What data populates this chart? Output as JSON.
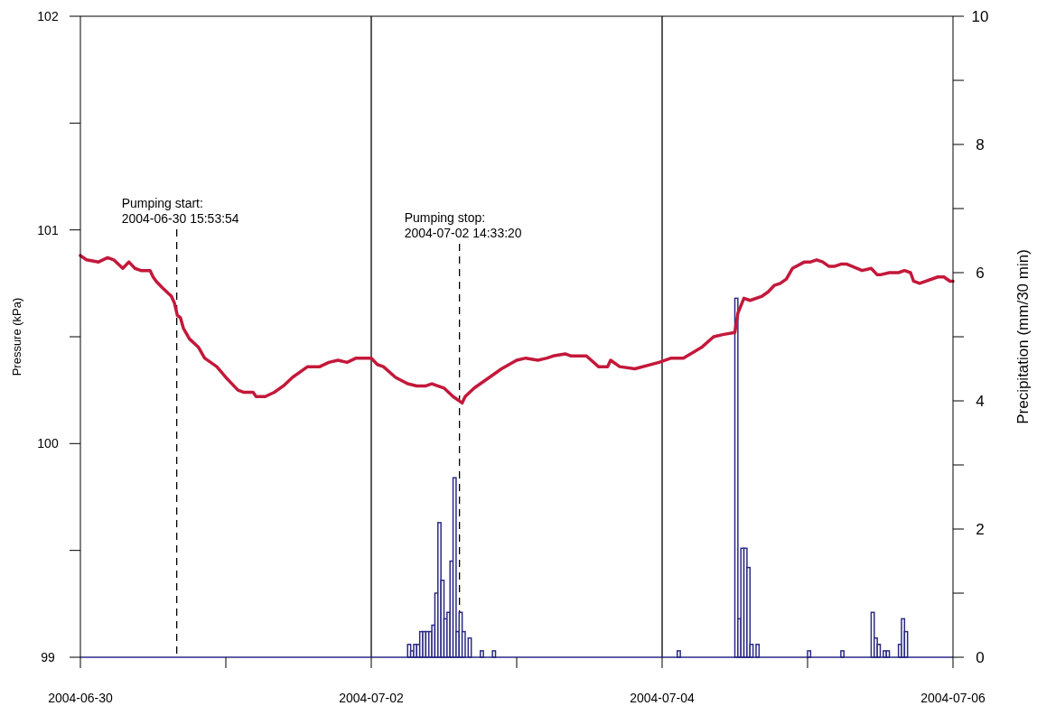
{
  "chart_data": {
    "type": "line",
    "ylabel": "Pressure (kPa)",
    "y2label": "Precipitation (mm/30 min)",
    "xlim": [
      "2004-06-30",
      "2004-07-06"
    ],
    "xticks": [
      {
        "value": "2004-06-30",
        "label": "2004-06-30"
      },
      {
        "value": "2004-07-01",
        "label": null
      },
      {
        "value": "2004-07-02",
        "label": "2004-07-02"
      },
      {
        "value": "2004-07-03",
        "label": null
      },
      {
        "value": "2004-07-04",
        "label": "2004-07-04"
      },
      {
        "value": "2004-07-05",
        "label": null
      },
      {
        "value": "2004-07-06",
        "label": "2004-07-06"
      }
    ],
    "ylim": [
      99,
      102
    ],
    "yticks": [
      99,
      {
        "value": 99.5,
        "label": null
      },
      100,
      {
        "value": 100.5,
        "label": null
      },
      101,
      {
        "value": 101.5,
        "label": null
      },
      102
    ],
    "y2lim": [
      0,
      10
    ],
    "y2ticks": [
      0,
      {
        "value": 1,
        "label": null
      },
      2,
      {
        "value": 3,
        "label": null
      },
      4,
      {
        "value": 5,
        "label": null
      },
      6,
      {
        "value": 7,
        "label": null
      },
      8,
      {
        "value": 9,
        "label": null
      },
      10
    ],
    "grid": false,
    "ref_lines": [
      {
        "axis": "x",
        "value": "2004-07-02",
        "color": "#000000",
        "line_style": "solid"
      },
      {
        "axis": "x",
        "value": "2004-07-04",
        "color": "#000000",
        "line_style": "solid"
      },
      {
        "axis": "x",
        "value": "2004-06-30T15:53:54",
        "label": "Pumping start:\n2004-06-30 15:53:54",
        "color": "#000000",
        "line_style": "dashed"
      },
      {
        "axis": "x",
        "value": "2004-07-02T14:33:20",
        "label": "Pumping stop:\n2004-07-02 14:33:20",
        "color": "#000000",
        "line_style": "dashed"
      }
    ],
    "series": [
      {
        "type": "bar",
        "axis": "y2",
        "color": "#2b2a86",
        "x": [
          "2004-07-02T06:00",
          "2004-07-02T06:30",
          "2004-07-02T07:00",
          "2004-07-02T07:30",
          "2004-07-02T08:00",
          "2004-07-02T08:30",
          "2004-07-02T09:00",
          "2004-07-02T09:30",
          "2004-07-02T10:00",
          "2004-07-02T10:30",
          "2004-07-02T11:00",
          "2004-07-02T11:30",
          "2004-07-02T12:00",
          "2004-07-02T12:30",
          "2004-07-02T13:00",
          "2004-07-02T13:30",
          "2004-07-02T14:00",
          "2004-07-02T14:30",
          "2004-07-02T15:00",
          "2004-07-02T16:00",
          "2004-07-02T18:00",
          "2004-07-02T20:00",
          "2004-07-04T02:30",
          "2004-07-04T12:00",
          "2004-07-04T12:30",
          "2004-07-04T13:00",
          "2004-07-04T13:30",
          "2004-07-04T14:00",
          "2004-07-04T14:30",
          "2004-07-04T15:30",
          "2004-07-05T00:00",
          "2004-07-05T05:30",
          "2004-07-05T10:30",
          "2004-07-05T11:00",
          "2004-07-05T11:30",
          "2004-07-05T12:30",
          "2004-07-05T13:00",
          "2004-07-05T15:00",
          "2004-07-05T15:30",
          "2004-07-05T16:00"
        ],
        "values": [
          0.2,
          0.1,
          0.2,
          0.2,
          0.4,
          0.4,
          0.4,
          0.4,
          0.5,
          1.0,
          2.1,
          1.2,
          0.6,
          0.7,
          1.5,
          2.8,
          0.4,
          0.7,
          0.4,
          0.3,
          0.1,
          0.1,
          0.1,
          5.6,
          0.6,
          1.7,
          1.7,
          1.4,
          0.2,
          0.2,
          0.1,
          0.1,
          0.7,
          0.3,
          0.2,
          0.1,
          0.1,
          0.2,
          0.6,
          0.4
        ]
      },
      {
        "color": "#c4183a",
        "x": [
          "2004-06-30T00:00",
          "2004-06-30T01:00",
          "2004-06-30T03:00",
          "2004-06-30T04:30",
          "2004-06-30T05:30",
          "2004-06-30T07:00",
          "2004-06-30T08:00",
          "2004-06-30T09:00",
          "2004-06-30T10:00",
          "2004-06-30T11:30",
          "2004-06-30T12:00",
          "2004-06-30T12:30",
          "2004-06-30T13:30",
          "2004-06-30T15:00",
          "2004-06-30T15:30",
          "2004-06-30T16:00",
          "2004-06-30T16:30",
          "2004-06-30T17:00",
          "2004-06-30T18:00",
          "2004-06-30T19:30",
          "2004-06-30T20:30",
          "2004-06-30T22:30",
          "2004-07-01T00:00",
          "2004-07-01T02:00",
          "2004-07-01T03:00",
          "2004-07-01T04:30",
          "2004-07-01T05:00",
          "2004-07-01T06:30",
          "2004-07-01T08:00",
          "2004-07-01T09:30",
          "2004-07-01T11:00",
          "2004-07-01T13:30",
          "2004-07-01T15:30",
          "2004-07-01T17:00",
          "2004-07-01T18:30",
          "2004-07-01T20:00",
          "2004-07-01T21:30",
          "2004-07-02T00:00",
          "2004-07-02T01:00",
          "2004-07-02T02:00",
          "2004-07-02T04:00",
          "2004-07-02T06:00",
          "2004-07-02T07:30",
          "2004-07-02T09:00",
          "2004-07-02T10:00",
          "2004-07-02T12:00",
          "2004-07-02T13:30",
          "2004-07-02T15:00",
          "2004-07-02T15:30",
          "2004-07-02T17:00",
          "2004-07-02T19:30",
          "2004-07-02T21:30",
          "2004-07-03T00:00",
          "2004-07-03T01:30",
          "2004-07-03T03:30",
          "2004-07-03T05:00",
          "2004-07-03T06:00",
          "2004-07-03T08:00",
          "2004-07-03T09:00",
          "2004-07-03T11:30",
          "2004-07-03T13:30",
          "2004-07-03T15:00",
          "2004-07-03T15:30",
          "2004-07-03T17:00",
          "2004-07-03T19:30",
          "2004-07-03T23:30",
          "2004-07-04T01:30",
          "2004-07-04T03:30",
          "2004-07-04T06:30",
          "2004-07-04T08:30",
          "2004-07-04T10:00",
          "2004-07-04T12:00",
          "2004-07-04T12:30",
          "2004-07-04T13:30",
          "2004-07-04T14:30",
          "2004-07-04T16:30",
          "2004-07-04T17:30",
          "2004-07-04T18:30",
          "2004-07-04T19:30",
          "2004-07-04T20:30",
          "2004-07-04T21:30",
          "2004-07-04T23:30",
          "2004-07-05T00:30",
          "2004-07-05T01:30",
          "2004-07-05T02:30",
          "2004-07-05T03:30",
          "2004-07-05T04:30",
          "2004-07-05T05:30",
          "2004-07-05T06:30",
          "2004-07-05T09:00",
          "2004-07-05T10:30",
          "2004-07-05T11:30",
          "2004-07-05T12:00",
          "2004-07-05T13:30",
          "2004-07-05T15:00",
          "2004-07-05T16:00",
          "2004-07-05T17:00",
          "2004-07-05T17:30",
          "2004-07-05T18:30",
          "2004-07-05T21:30",
          "2004-07-05T22:30",
          "2004-07-05T23:30",
          "2004-07-06T00:00"
        ],
        "values": [
          100.88,
          100.86,
          100.85,
          100.87,
          100.86,
          100.82,
          100.85,
          100.82,
          100.81,
          100.81,
          100.78,
          100.76,
          100.73,
          100.69,
          100.66,
          100.6,
          100.59,
          100.54,
          100.49,
          100.45,
          100.4,
          100.36,
          100.31,
          100.25,
          100.24,
          100.24,
          100.22,
          100.22,
          100.24,
          100.27,
          100.31,
          100.36,
          100.36,
          100.38,
          100.39,
          100.38,
          100.4,
          100.4,
          100.37,
          100.36,
          100.31,
          100.28,
          100.27,
          100.27,
          100.28,
          100.26,
          100.22,
          100.19,
          100.22,
          100.26,
          100.31,
          100.35,
          100.39,
          100.4,
          100.39,
          100.4,
          100.41,
          100.42,
          100.41,
          100.41,
          100.36,
          100.36,
          100.39,
          100.36,
          100.35,
          100.38,
          100.4,
          100.4,
          100.45,
          100.5,
          100.51,
          100.52,
          100.61,
          100.68,
          100.67,
          100.69,
          100.71,
          100.74,
          100.75,
          100.77,
          100.82,
          100.85,
          100.85,
          100.86,
          100.85,
          100.83,
          100.83,
          100.84,
          100.84,
          100.81,
          100.82,
          100.79,
          100.79,
          100.8,
          100.8,
          100.81,
          100.8,
          100.76,
          100.75,
          100.78,
          100.78,
          100.76,
          100.76
        ]
      }
    ]
  }
}
